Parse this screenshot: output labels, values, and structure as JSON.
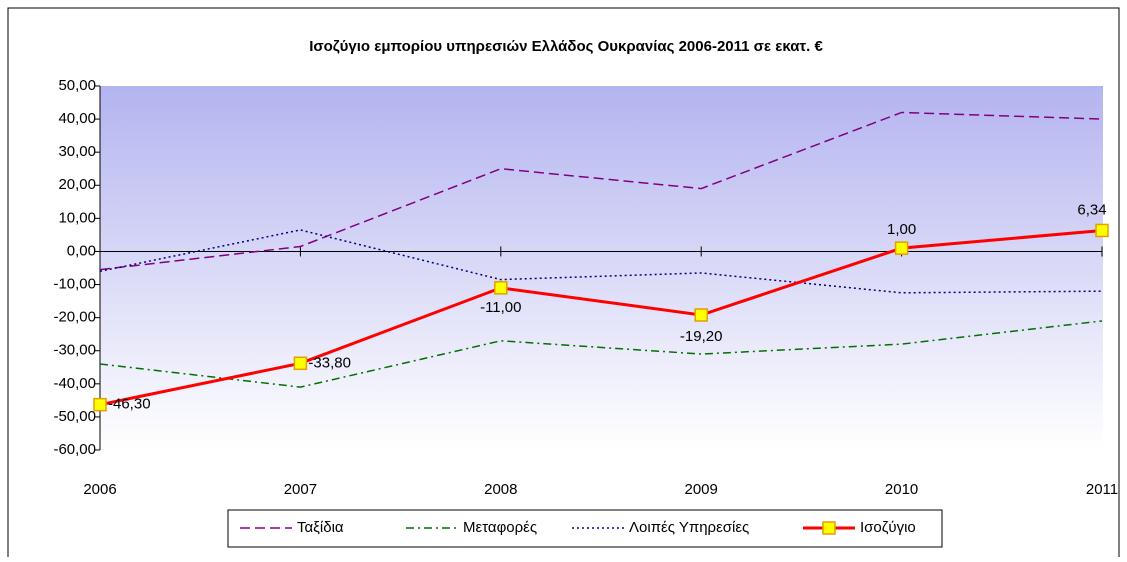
{
  "chart_data": {
    "type": "line",
    "title": "Ισοζύγιο εμπορίου υπηρεσιών Ελλάδος Ουκρανίας 2006-2011 σε εκατ. €",
    "categories": [
      "2006",
      "2007",
      "2008",
      "2009",
      "2010",
      "2011"
    ],
    "series": [
      {
        "name": "Ταξίδια",
        "color": "#800080",
        "dash": "10,5",
        "values": [
          -5.5,
          1.5,
          25,
          19,
          42,
          40
        ]
      },
      {
        "name": "Μεταφορές",
        "color": "#007000",
        "dash": "8,4,2,4",
        "values": [
          -34,
          -41,
          -27,
          -31,
          -28,
          -21
        ]
      },
      {
        "name": "Λοιπές Υπηρεσίες",
        "color": "#000080",
        "dash": "2,3",
        "values": [
          -6,
          6.5,
          -8.5,
          -6.5,
          -12.5,
          -12
        ]
      },
      {
        "name": "Ισοζύγιο",
        "color": "#ff0000",
        "marker_color": "#ffff00",
        "values": [
          -46.3,
          -33.8,
          -11,
          -19.2,
          1,
          6.34
        ],
        "value_labels": [
          "-46,30",
          "-33,80",
          "-11,00",
          "-19,20",
          "1,00",
          "6,34"
        ]
      }
    ],
    "ylim": [
      -60,
      50
    ],
    "yticks": [
      {
        "value": -60,
        "label": "-60,00"
      },
      {
        "value": -50,
        "label": "-50,00"
      },
      {
        "value": -40,
        "label": "-40,00"
      },
      {
        "value": -30,
        "label": "-30,00"
      },
      {
        "value": -20,
        "label": "-20,00"
      },
      {
        "value": -10,
        "label": "-10,00"
      },
      {
        "value": 0,
        "label": "0,00"
      },
      {
        "value": 10,
        "label": "10,00"
      },
      {
        "value": 20,
        "label": "20,00"
      },
      {
        "value": 30,
        "label": "30,00"
      },
      {
        "value": 40,
        "label": "40,00"
      },
      {
        "value": 50,
        "label": "50,00"
      }
    ],
    "grid": false,
    "legend": "bottom"
  }
}
